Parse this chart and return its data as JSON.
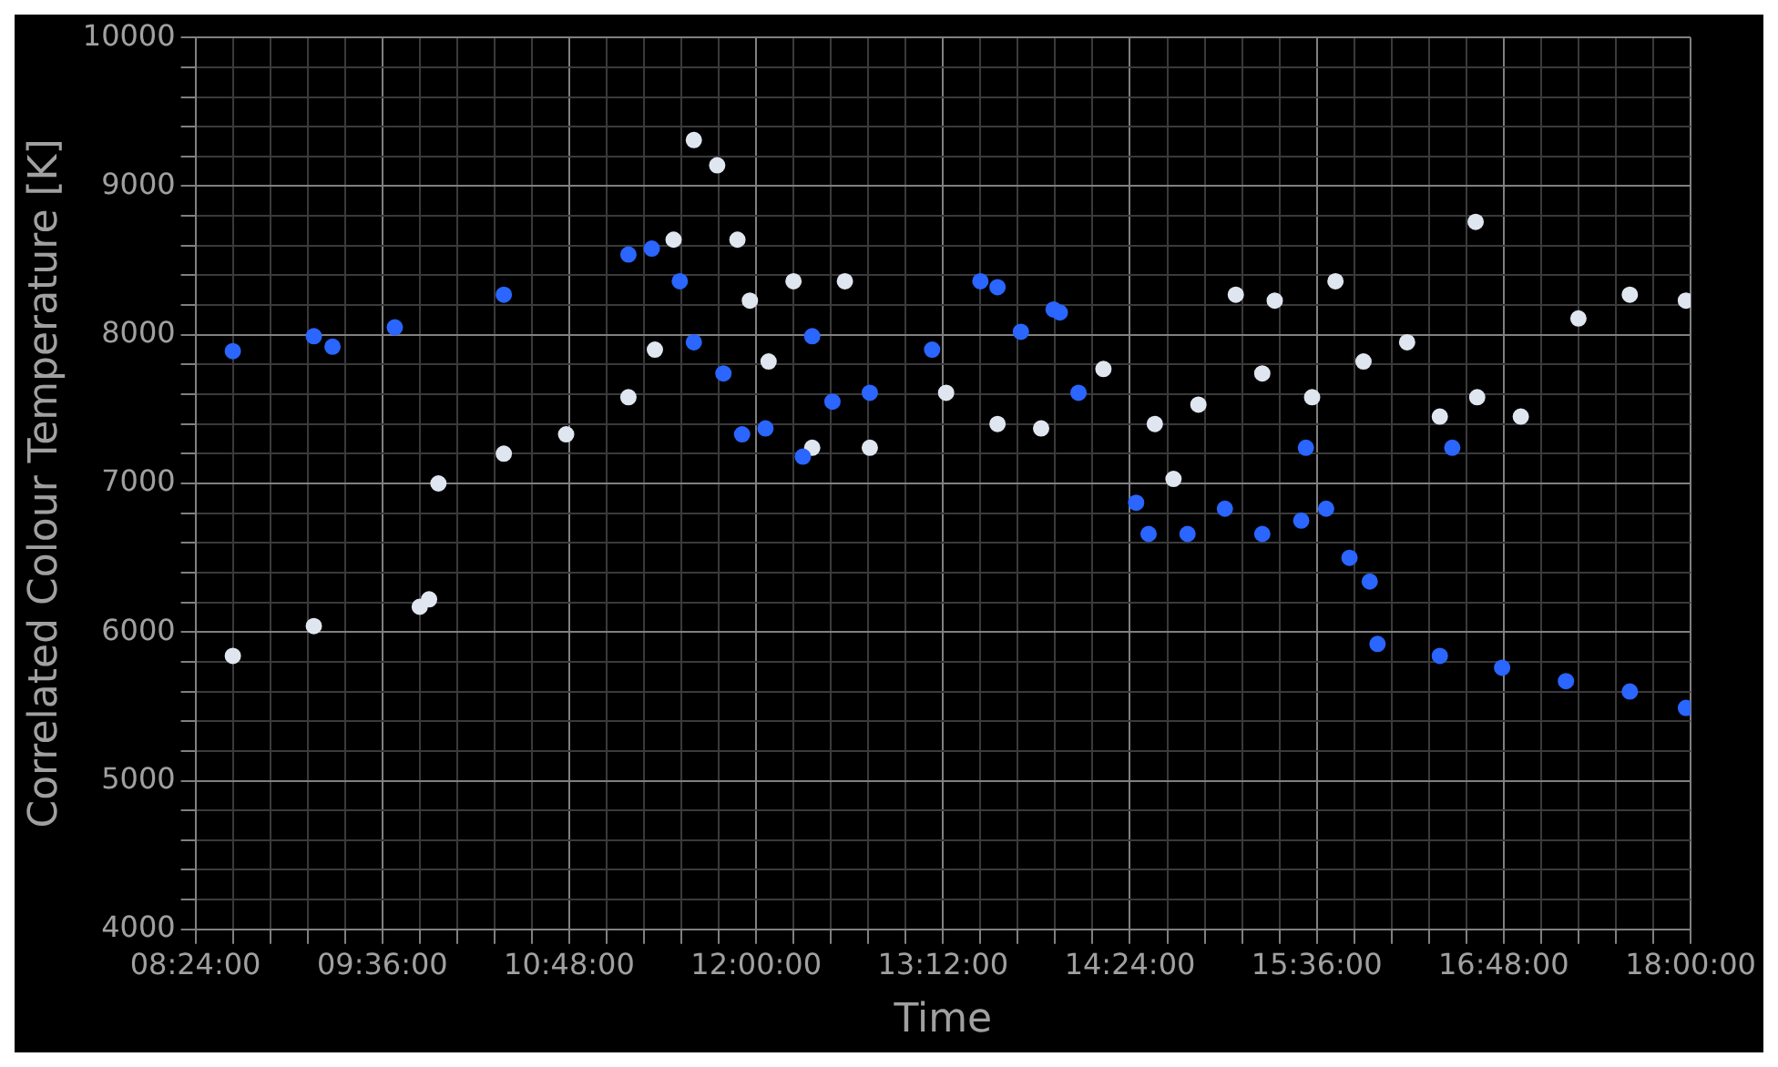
{
  "chart_data": {
    "type": "scatter",
    "xlabel": "Time",
    "ylabel": "Correlated Colour Temperature [K]",
    "marker": "circle",
    "grid": true,
    "xlim": [
      8.4,
      18
    ],
    "ylim": [
      4000,
      10000
    ],
    "xticks": [
      {
        "value": 8.4,
        "label": "08:24:00"
      },
      {
        "value": 8.64,
        "label": null
      },
      {
        "value": 8.88,
        "label": null
      },
      {
        "value": 9.12,
        "label": null
      },
      {
        "value": 9.36,
        "label": null
      },
      {
        "value": 9.6,
        "label": "09:36:00"
      },
      {
        "value": 9.84,
        "label": null
      },
      {
        "value": 10.08,
        "label": null
      },
      {
        "value": 10.32,
        "label": null
      },
      {
        "value": 10.56,
        "label": null
      },
      {
        "value": 10.8,
        "label": "10:48:00"
      },
      {
        "value": 11.04,
        "label": null
      },
      {
        "value": 11.28,
        "label": null
      },
      {
        "value": 11.52,
        "label": null
      },
      {
        "value": 11.76,
        "label": null
      },
      {
        "value": 12,
        "label": "12:00:00"
      },
      {
        "value": 12.24,
        "label": null
      },
      {
        "value": 12.48,
        "label": null
      },
      {
        "value": 12.72,
        "label": null
      },
      {
        "value": 12.96,
        "label": null
      },
      {
        "value": 13.2,
        "label": "13:12:00"
      },
      {
        "value": 13.44,
        "label": null
      },
      {
        "value": 13.68,
        "label": null
      },
      {
        "value": 13.92,
        "label": null
      },
      {
        "value": 14.16,
        "label": null
      },
      {
        "value": 14.4,
        "label": "14:24:00"
      },
      {
        "value": 14.64,
        "label": null
      },
      {
        "value": 14.88,
        "label": null
      },
      {
        "value": 15.12,
        "label": null
      },
      {
        "value": 15.36,
        "label": null
      },
      {
        "value": 15.6,
        "label": "15:36:00"
      },
      {
        "value": 15.84,
        "label": null
      },
      {
        "value": 16.08,
        "label": null
      },
      {
        "value": 16.32,
        "label": null
      },
      {
        "value": 16.56,
        "label": null
      },
      {
        "value": 16.8,
        "label": "16:48:00"
      },
      {
        "value": 17.04,
        "label": null
      },
      {
        "value": 17.28,
        "label": null
      },
      {
        "value": 17.52,
        "label": null
      },
      {
        "value": 17.76,
        "label": null
      },
      {
        "value": 18,
        "label": "18:00:00"
      }
    ],
    "yticks": [
      4000,
      {
        "value": 4200,
        "label": null
      },
      {
        "value": 4400,
        "label": null
      },
      {
        "value": 4600,
        "label": null
      },
      {
        "value": 4800,
        "label": null
      },
      5000,
      {
        "value": 5200,
        "label": null
      },
      {
        "value": 5400,
        "label": null
      },
      {
        "value": 5600,
        "label": null
      },
      {
        "value": 5800,
        "label": null
      },
      6000,
      {
        "value": 6200,
        "label": null
      },
      {
        "value": 6400,
        "label": null
      },
      {
        "value": 6600,
        "label": null
      },
      {
        "value": 6800,
        "label": null
      },
      7000,
      {
        "value": 7200,
        "label": null
      },
      {
        "value": 7400,
        "label": null
      },
      {
        "value": 7600,
        "label": null
      },
      {
        "value": 7800,
        "label": null
      },
      8000,
      {
        "value": 8200,
        "label": null
      },
      {
        "value": 8400,
        "label": null
      },
      {
        "value": 8600,
        "label": null
      },
      {
        "value": 8800,
        "label": null
      },
      9000,
      {
        "value": 9200,
        "label": null
      },
      {
        "value": 9400,
        "label": null
      },
      {
        "value": 9600,
        "label": null
      },
      {
        "value": 9800,
        "label": null
      },
      10000
    ],
    "series": [
      {
        "color": "#2a66ff",
        "x": [
          8.64,
          9.16,
          9.28,
          9.68,
          10.38,
          11.18,
          11.33,
          11.51,
          11.6,
          11.79,
          11.91,
          12.06,
          12.3,
          12.36,
          12.49,
          12.73,
          13.13,
          13.44,
          13.55,
          13.7,
          13.91,
          13.95,
          14.07,
          14.44,
          14.52,
          14.77,
          15.01,
          15.25,
          15.5,
          15.53,
          15.66,
          15.81,
          15.94,
          15.99,
          16.39,
          16.47,
          16.79,
          17.2,
          17.61,
          17.97
        ],
        "values": [
          7890,
          7990,
          7920,
          8050,
          8270,
          8540,
          8580,
          8360,
          7950,
          7740,
          7330,
          7370,
          7180,
          7990,
          7550,
          7610,
          7900,
          8360,
          8320,
          8020,
          8170,
          8150,
          7610,
          6870,
          6660,
          6660,
          6830,
          6660,
          6750,
          7240,
          6830,
          6500,
          6340,
          5920,
          5840,
          7240,
          5760,
          5670,
          5600,
          5490
        ]
      },
      {
        "color": "#e0e6f0",
        "x": [
          8.64,
          9.16,
          9.84,
          9.9,
          9.96,
          10.38,
          10.78,
          11.18,
          11.35,
          11.47,
          11.6,
          11.75,
          11.88,
          11.96,
          12.08,
          12.24,
          12.36,
          12.57,
          12.73,
          13.22,
          13.55,
          13.83,
          14.23,
          14.56,
          14.68,
          14.84,
          15.08,
          15.25,
          15.33,
          15.57,
          15.72,
          15.9,
          16.18,
          16.39,
          16.62,
          16.63,
          16.91,
          17.28,
          17.61,
          17.97
        ],
        "values": [
          5840,
          6040,
          6170,
          6220,
          7000,
          7200,
          7330,
          7580,
          7900,
          8640,
          9310,
          9140,
          8640,
          8230,
          7820,
          8360,
          7240,
          8360,
          7240,
          7610,
          7400,
          7370,
          7770,
          7400,
          7030,
          7530,
          8270,
          7740,
          8230,
          7580,
          8360,
          7820,
          7950,
          7450,
          8760,
          7580,
          7450,
          8110,
          8270,
          8230
        ]
      }
    ]
  }
}
